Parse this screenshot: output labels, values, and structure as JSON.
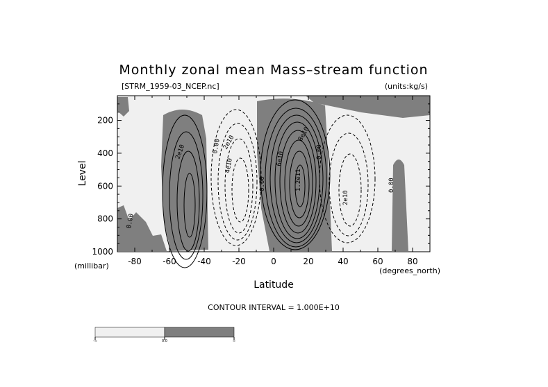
{
  "chart_data": {
    "type": "contour",
    "title": "Monthly zonal mean Mass–stream function",
    "file_label": "[STRM_1959-03_NCEP.nc]",
    "units_label": "(units:kg/s)",
    "xlabel": "Latitude",
    "ylabel": "Level",
    "x_units": "(degrees_north)",
    "y_units": "(millibar)",
    "xlim": [
      -90,
      90
    ],
    "ylim": [
      1000,
      50
    ],
    "y_reversed": true,
    "x_ticks": [
      -80,
      -60,
      -40,
      -20,
      0,
      20,
      40,
      60,
      80
    ],
    "y_ticks": [
      200,
      400,
      600,
      800,
      1000
    ],
    "contour_interval_label": "CONTOUR INTERVAL = 1.000E+10",
    "contour_labels": [
      "2e10",
      "0.00",
      "2e10",
      "4e10",
      "0.00",
      "6e10",
      "8e10",
      "1.2e11",
      "0.00",
      "2e10",
      "0.00",
      "0.00"
    ],
    "cells": [
      {
        "center_lat": -50,
        "center_p": 550,
        "peak": 40000000000.0,
        "sign": "positive"
      },
      {
        "center_lat": -22,
        "center_p": 450,
        "peak": -60000000000.0,
        "sign": "negative"
      },
      {
        "center_lat": 12,
        "center_p": 500,
        "peak": 130000000000.0,
        "sign": "positive"
      },
      {
        "center_lat": 42,
        "center_p": 550,
        "peak": -40000000000.0,
        "sign": "negative"
      }
    ],
    "shading": {
      "negative_color": "#f0f0f0",
      "positive_color": "#7f7f7f",
      "colorbar_labels": [
        "-∞",
        "0.0",
        "∞"
      ]
    }
  }
}
